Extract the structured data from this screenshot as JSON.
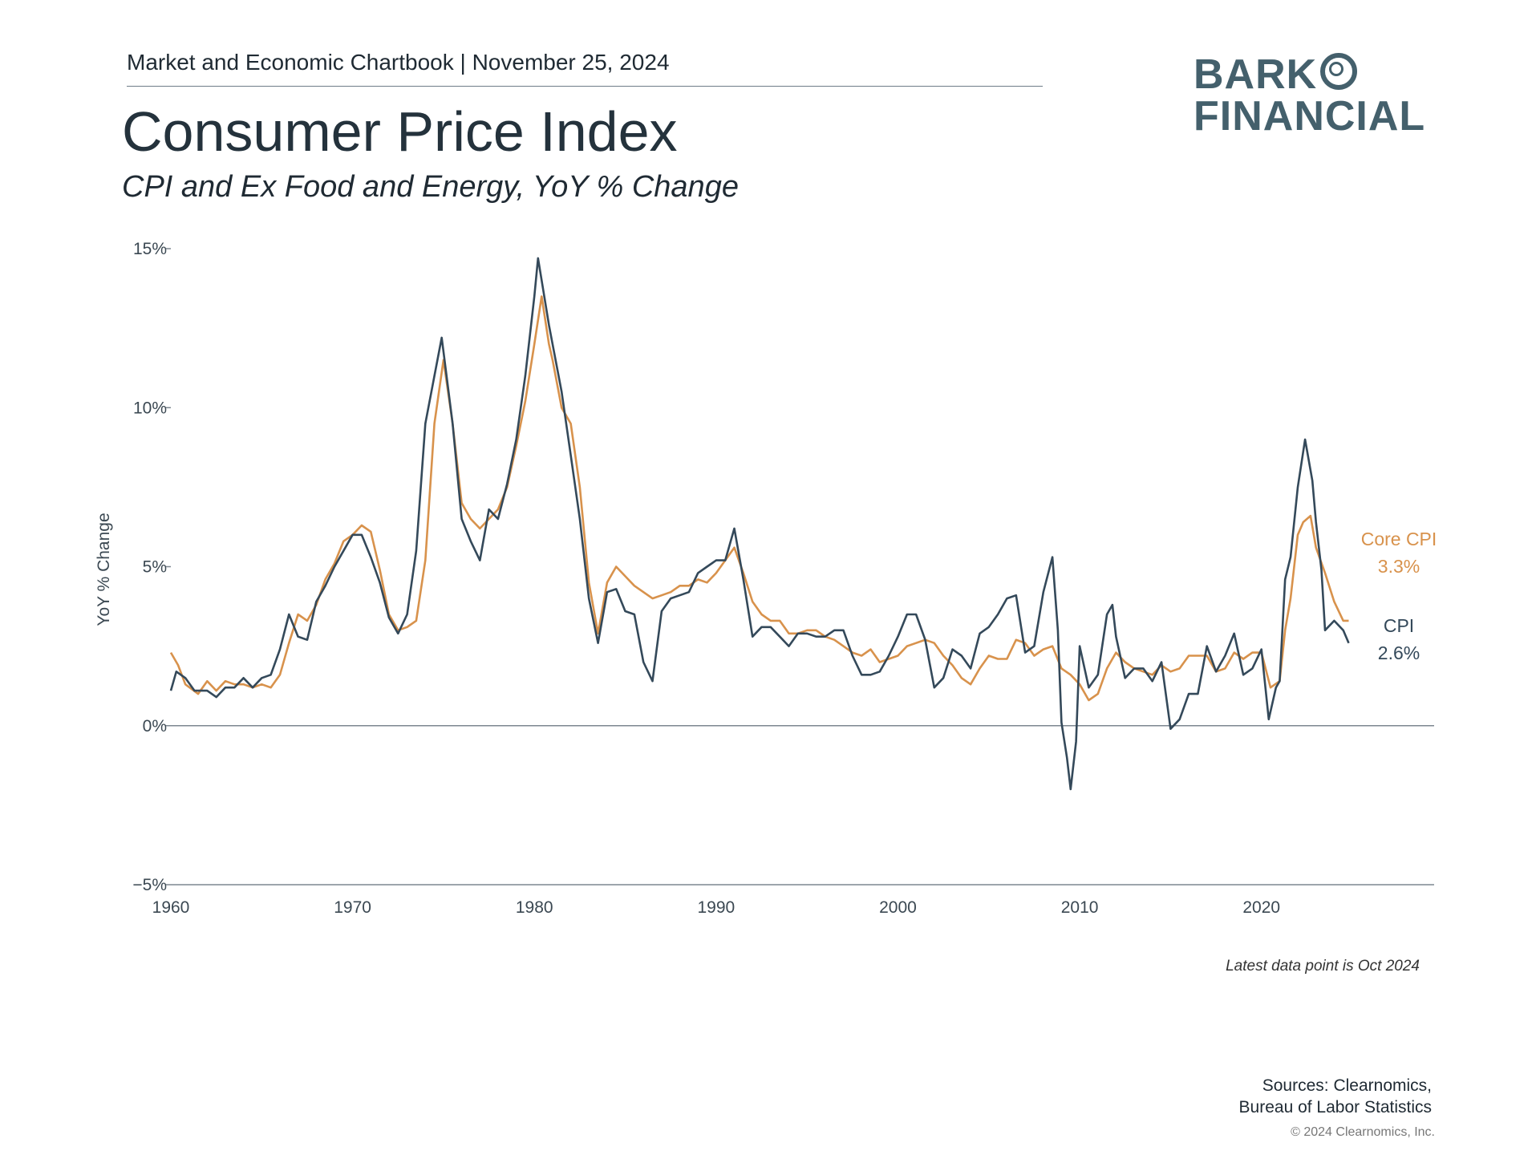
{
  "header": {
    "report_line": "Market and Economic Chartbook | November 25, 2024",
    "logo_line1": "BARK",
    "logo_line2": "FINANCIAL",
    "title": "Consumer Price Index",
    "subtitle": "CPI and Ex Food and Energy, YoY % Change"
  },
  "footer": {
    "latest_note": "Latest data point is Oct 2024",
    "sources_line1": "Sources: Clearnomics,",
    "sources_line2": "Bureau of Labor Statistics",
    "copyright": "© 2024 Clearnomics, Inc."
  },
  "chart_data": {
    "type": "line",
    "ylabel": "YoY % Change",
    "ylim": [
      -5,
      15
    ],
    "xlim": [
      1960,
      2029.5
    ],
    "yticks": [
      -5,
      0,
      5,
      10,
      15
    ],
    "ytick_labels": [
      "−5%",
      "0%",
      "5%",
      "10%",
      "15%"
    ],
    "xticks": [
      1960,
      1970,
      1980,
      1990,
      2000,
      2010,
      2020
    ],
    "xtick_labels": [
      "1960",
      "1970",
      "1980",
      "1990",
      "2000",
      "2010",
      "2020"
    ],
    "zero_line": true,
    "series": [
      {
        "name": "Core CPI",
        "end_label": "3.3%",
        "color": "#d8924c",
        "points": [
          [
            1960.0,
            2.3
          ],
          [
            1960.4,
            1.9
          ],
          [
            1960.8,
            1.3
          ],
          [
            1961.5,
            1.0
          ],
          [
            1962.0,
            1.4
          ],
          [
            1962.5,
            1.1
          ],
          [
            1963.0,
            1.4
          ],
          [
            1963.5,
            1.3
          ],
          [
            1964.0,
            1.3
          ],
          [
            1964.5,
            1.2
          ],
          [
            1965.0,
            1.3
          ],
          [
            1965.5,
            1.2
          ],
          [
            1966.0,
            1.6
          ],
          [
            1966.5,
            2.6
          ],
          [
            1967.0,
            3.5
          ],
          [
            1967.5,
            3.3
          ],
          [
            1968.0,
            3.8
          ],
          [
            1968.5,
            4.6
          ],
          [
            1969.0,
            5.1
          ],
          [
            1969.5,
            5.8
          ],
          [
            1970.0,
            6.0
          ],
          [
            1970.5,
            6.3
          ],
          [
            1971.0,
            6.1
          ],
          [
            1971.5,
            4.9
          ],
          [
            1972.0,
            3.5
          ],
          [
            1972.5,
            3.0
          ],
          [
            1973.0,
            3.1
          ],
          [
            1973.5,
            3.3
          ],
          [
            1974.0,
            5.2
          ],
          [
            1974.5,
            9.5
          ],
          [
            1975.0,
            11.5
          ],
          [
            1975.5,
            9.5
          ],
          [
            1976.0,
            7.0
          ],
          [
            1976.5,
            6.5
          ],
          [
            1977.0,
            6.2
          ],
          [
            1977.5,
            6.5
          ],
          [
            1978.0,
            6.8
          ],
          [
            1978.5,
            7.5
          ],
          [
            1979.0,
            8.8
          ],
          [
            1979.5,
            10.2
          ],
          [
            1980.0,
            12.0
          ],
          [
            1980.4,
            13.5
          ],
          [
            1980.8,
            12.0
          ],
          [
            1981.0,
            11.5
          ],
          [
            1981.5,
            10.0
          ],
          [
            1982.0,
            9.5
          ],
          [
            1982.5,
            7.5
          ],
          [
            1983.0,
            4.5
          ],
          [
            1983.5,
            2.9
          ],
          [
            1984.0,
            4.5
          ],
          [
            1984.5,
            5.0
          ],
          [
            1985.0,
            4.7
          ],
          [
            1985.5,
            4.4
          ],
          [
            1986.0,
            4.2
          ],
          [
            1986.5,
            4.0
          ],
          [
            1987.0,
            4.1
          ],
          [
            1987.5,
            4.2
          ],
          [
            1988.0,
            4.4
          ],
          [
            1988.5,
            4.4
          ],
          [
            1989.0,
            4.6
          ],
          [
            1989.5,
            4.5
          ],
          [
            1990.0,
            4.8
          ],
          [
            1990.5,
            5.2
          ],
          [
            1991.0,
            5.6
          ],
          [
            1991.5,
            4.8
          ],
          [
            1992.0,
            3.9
          ],
          [
            1992.5,
            3.5
          ],
          [
            1993.0,
            3.3
          ],
          [
            1993.5,
            3.3
          ],
          [
            1994.0,
            2.9
          ],
          [
            1994.5,
            2.9
          ],
          [
            1995.0,
            3.0
          ],
          [
            1995.5,
            3.0
          ],
          [
            1996.0,
            2.8
          ],
          [
            1996.5,
            2.7
          ],
          [
            1997.0,
            2.5
          ],
          [
            1997.5,
            2.3
          ],
          [
            1998.0,
            2.2
          ],
          [
            1998.5,
            2.4
          ],
          [
            1999.0,
            2.0
          ],
          [
            1999.5,
            2.1
          ],
          [
            2000.0,
            2.2
          ],
          [
            2000.5,
            2.5
          ],
          [
            2001.0,
            2.6
          ],
          [
            2001.5,
            2.7
          ],
          [
            2002.0,
            2.6
          ],
          [
            2002.5,
            2.2
          ],
          [
            2003.0,
            1.9
          ],
          [
            2003.5,
            1.5
          ],
          [
            2004.0,
            1.3
          ],
          [
            2004.5,
            1.8
          ],
          [
            2005.0,
            2.2
          ],
          [
            2005.5,
            2.1
          ],
          [
            2006.0,
            2.1
          ],
          [
            2006.5,
            2.7
          ],
          [
            2007.0,
            2.6
          ],
          [
            2007.5,
            2.2
          ],
          [
            2008.0,
            2.4
          ],
          [
            2008.5,
            2.5
          ],
          [
            2009.0,
            1.8
          ],
          [
            2009.5,
            1.6
          ],
          [
            2010.0,
            1.3
          ],
          [
            2010.5,
            0.8
          ],
          [
            2011.0,
            1.0
          ],
          [
            2011.5,
            1.8
          ],
          [
            2012.0,
            2.3
          ],
          [
            2012.5,
            2.0
          ],
          [
            2013.0,
            1.8
          ],
          [
            2013.5,
            1.7
          ],
          [
            2014.0,
            1.6
          ],
          [
            2014.5,
            1.9
          ],
          [
            2015.0,
            1.7
          ],
          [
            2015.5,
            1.8
          ],
          [
            2016.0,
            2.2
          ],
          [
            2016.5,
            2.2
          ],
          [
            2017.0,
            2.2
          ],
          [
            2017.5,
            1.7
          ],
          [
            2018.0,
            1.8
          ],
          [
            2018.5,
            2.3
          ],
          [
            2019.0,
            2.1
          ],
          [
            2019.5,
            2.3
          ],
          [
            2020.0,
            2.3
          ],
          [
            2020.5,
            1.2
          ],
          [
            2021.0,
            1.4
          ],
          [
            2021.3,
            3.0
          ],
          [
            2021.6,
            4.0
          ],
          [
            2022.0,
            6.0
          ],
          [
            2022.3,
            6.4
          ],
          [
            2022.7,
            6.6
          ],
          [
            2023.0,
            5.6
          ],
          [
            2023.5,
            4.8
          ],
          [
            2024.0,
            3.9
          ],
          [
            2024.5,
            3.3
          ],
          [
            2024.8,
            3.3
          ]
        ]
      },
      {
        "name": "CPI",
        "end_label": "2.6%",
        "color": "#34495a",
        "points": [
          [
            1960.0,
            1.1
          ],
          [
            1960.3,
            1.7
          ],
          [
            1960.8,
            1.5
          ],
          [
            1961.3,
            1.1
          ],
          [
            1962.0,
            1.1
          ],
          [
            1962.5,
            0.9
          ],
          [
            1963.0,
            1.2
          ],
          [
            1963.5,
            1.2
          ],
          [
            1964.0,
            1.5
          ],
          [
            1964.5,
            1.2
          ],
          [
            1965.0,
            1.5
          ],
          [
            1965.5,
            1.6
          ],
          [
            1966.0,
            2.4
          ],
          [
            1966.5,
            3.5
          ],
          [
            1967.0,
            2.8
          ],
          [
            1967.5,
            2.7
          ],
          [
            1968.0,
            3.9
          ],
          [
            1968.5,
            4.4
          ],
          [
            1969.0,
            5.0
          ],
          [
            1969.5,
            5.5
          ],
          [
            1970.0,
            6.0
          ],
          [
            1970.5,
            6.0
          ],
          [
            1971.0,
            5.3
          ],
          [
            1971.5,
            4.5
          ],
          [
            1972.0,
            3.4
          ],
          [
            1972.5,
            2.9
          ],
          [
            1973.0,
            3.5
          ],
          [
            1973.5,
            5.5
          ],
          [
            1974.0,
            9.5
          ],
          [
            1974.5,
            11.0
          ],
          [
            1974.9,
            12.2
          ],
          [
            1975.5,
            9.5
          ],
          [
            1976.0,
            6.5
          ],
          [
            1976.5,
            5.8
          ],
          [
            1977.0,
            5.2
          ],
          [
            1977.5,
            6.8
          ],
          [
            1978.0,
            6.5
          ],
          [
            1978.5,
            7.6
          ],
          [
            1979.0,
            9.0
          ],
          [
            1979.5,
            11.0
          ],
          [
            1980.0,
            13.5
          ],
          [
            1980.2,
            14.7
          ],
          [
            1980.8,
            12.6
          ],
          [
            1981.0,
            12.0
          ],
          [
            1981.5,
            10.5
          ],
          [
            1982.0,
            8.5
          ],
          [
            1982.5,
            6.5
          ],
          [
            1983.0,
            4.0
          ],
          [
            1983.5,
            2.6
          ],
          [
            1984.0,
            4.2
          ],
          [
            1984.5,
            4.3
          ],
          [
            1985.0,
            3.6
          ],
          [
            1985.5,
            3.5
          ],
          [
            1986.0,
            2.0
          ],
          [
            1986.5,
            1.4
          ],
          [
            1987.0,
            3.6
          ],
          [
            1987.5,
            4.0
          ],
          [
            1988.0,
            4.1
          ],
          [
            1988.5,
            4.2
          ],
          [
            1989.0,
            4.8
          ],
          [
            1989.5,
            5.0
          ],
          [
            1990.0,
            5.2
          ],
          [
            1990.5,
            5.2
          ],
          [
            1991.0,
            6.2
          ],
          [
            1991.5,
            4.6
          ],
          [
            1992.0,
            2.8
          ],
          [
            1992.5,
            3.1
          ],
          [
            1993.0,
            3.1
          ],
          [
            1993.5,
            2.8
          ],
          [
            1994.0,
            2.5
          ],
          [
            1994.5,
            2.9
          ],
          [
            1995.0,
            2.9
          ],
          [
            1995.5,
            2.8
          ],
          [
            1996.0,
            2.8
          ],
          [
            1996.5,
            3.0
          ],
          [
            1997.0,
            3.0
          ],
          [
            1997.5,
            2.2
          ],
          [
            1998.0,
            1.6
          ],
          [
            1998.5,
            1.6
          ],
          [
            1999.0,
            1.7
          ],
          [
            1999.5,
            2.2
          ],
          [
            2000.0,
            2.8
          ],
          [
            2000.5,
            3.5
          ],
          [
            2001.0,
            3.5
          ],
          [
            2001.5,
            2.7
          ],
          [
            2002.0,
            1.2
          ],
          [
            2002.5,
            1.5
          ],
          [
            2003.0,
            2.4
          ],
          [
            2003.5,
            2.2
          ],
          [
            2004.0,
            1.8
          ],
          [
            2004.5,
            2.9
          ],
          [
            2005.0,
            3.1
          ],
          [
            2005.5,
            3.5
          ],
          [
            2006.0,
            4.0
          ],
          [
            2006.5,
            4.1
          ],
          [
            2007.0,
            2.3
          ],
          [
            2007.5,
            2.5
          ],
          [
            2008.0,
            4.2
          ],
          [
            2008.5,
            5.3
          ],
          [
            2008.8,
            3.0
          ],
          [
            2009.0,
            0.1
          ],
          [
            2009.3,
            -1.0
          ],
          [
            2009.5,
            -2.0
          ],
          [
            2009.8,
            -0.5
          ],
          [
            2010.0,
            2.5
          ],
          [
            2010.5,
            1.2
          ],
          [
            2011.0,
            1.6
          ],
          [
            2011.5,
            3.5
          ],
          [
            2011.8,
            3.8
          ],
          [
            2012.0,
            2.8
          ],
          [
            2012.5,
            1.5
          ],
          [
            2013.0,
            1.8
          ],
          [
            2013.5,
            1.8
          ],
          [
            2014.0,
            1.4
          ],
          [
            2014.5,
            2.0
          ],
          [
            2015.0,
            -0.1
          ],
          [
            2015.5,
            0.2
          ],
          [
            2016.0,
            1.0
          ],
          [
            2016.5,
            1.0
          ],
          [
            2017.0,
            2.5
          ],
          [
            2017.5,
            1.7
          ],
          [
            2018.0,
            2.2
          ],
          [
            2018.5,
            2.9
          ],
          [
            2019.0,
            1.6
          ],
          [
            2019.5,
            1.8
          ],
          [
            2020.0,
            2.4
          ],
          [
            2020.4,
            0.2
          ],
          [
            2020.8,
            1.2
          ],
          [
            2021.0,
            1.4
          ],
          [
            2021.3,
            4.6
          ],
          [
            2021.6,
            5.3
          ],
          [
            2022.0,
            7.5
          ],
          [
            2022.4,
            9.0
          ],
          [
            2022.8,
            7.7
          ],
          [
            2023.0,
            6.4
          ],
          [
            2023.3,
            4.9
          ],
          [
            2023.5,
            3.0
          ],
          [
            2024.0,
            3.3
          ],
          [
            2024.5,
            3.0
          ],
          [
            2024.8,
            2.6
          ]
        ]
      }
    ]
  }
}
